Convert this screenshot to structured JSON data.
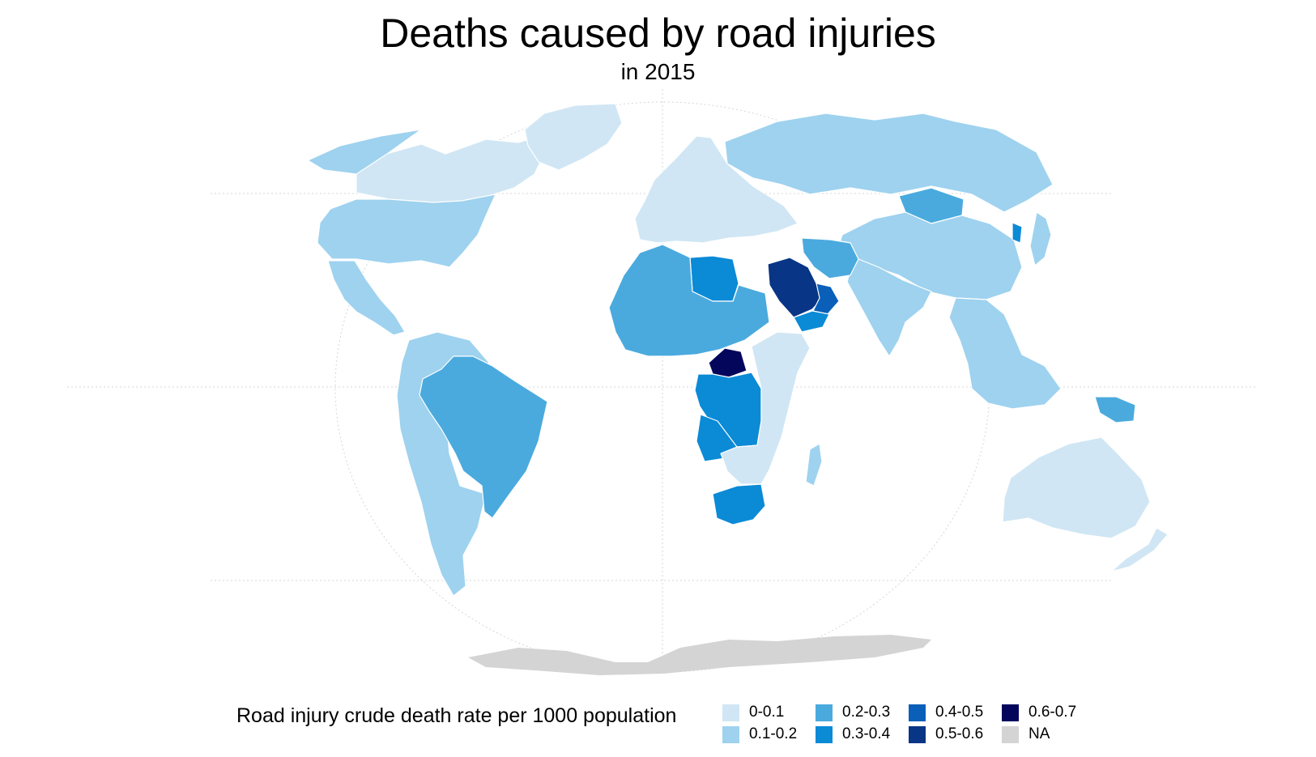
{
  "title": "Deaths caused by road injuries",
  "subtitle": "in 2015",
  "legend": {
    "title": "Road injury crude death rate per 1000 population",
    "items": [
      {
        "label": "0-0.1",
        "color": "#d0e6f4"
      },
      {
        "label": "0.1-0.2",
        "color": "#9ed2ef"
      },
      {
        "label": "0.2-0.3",
        "color": "#4aaade"
      },
      {
        "label": "0.3-0.4",
        "color": "#0b8ad6"
      },
      {
        "label": "0.4-0.5",
        "color": "#0a5fb9"
      },
      {
        "label": "0.5-0.6",
        "color": "#083585"
      },
      {
        "label": "0.6-0.7",
        "color": "#04065c"
      },
      {
        "label": "NA",
        "color": "#d4d4d4"
      }
    ]
  },
  "regions": [
    {
      "name": "Canada",
      "bin": "0-0.1"
    },
    {
      "name": "Greenland",
      "bin": "0-0.1"
    },
    {
      "name": "Alaska",
      "bin": "0.1-0.2"
    },
    {
      "name": "United States",
      "bin": "0.1-0.2"
    },
    {
      "name": "Mexico and Central America",
      "bin": "0.1-0.2"
    },
    {
      "name": "South America",
      "bin": "0.1-0.2"
    },
    {
      "name": "Brazil",
      "bin": "0.2-0.3"
    },
    {
      "name": "Europe",
      "bin": "0-0.1"
    },
    {
      "name": "Russia",
      "bin": "0.1-0.2"
    },
    {
      "name": "Mongolia",
      "bin": "0.2-0.3"
    },
    {
      "name": "China",
      "bin": "0.1-0.2"
    },
    {
      "name": "India",
      "bin": "0.1-0.2"
    },
    {
      "name": "Iran",
      "bin": "0.2-0.3"
    },
    {
      "name": "Saudi Arabia",
      "bin": "0.5-0.6"
    },
    {
      "name": "Oman",
      "bin": "0.4-0.5"
    },
    {
      "name": "Yemen",
      "bin": "0.3-0.4"
    },
    {
      "name": "Libya",
      "bin": "0.3-0.4"
    },
    {
      "name": "North and West Africa",
      "bin": "0.2-0.3"
    },
    {
      "name": "Central African Republic",
      "bin": "0.6-0.7"
    },
    {
      "name": "DR Congo",
      "bin": "0.3-0.4"
    },
    {
      "name": "Angola",
      "bin": "0.3-0.4"
    },
    {
      "name": "South Africa",
      "bin": "0.3-0.4"
    },
    {
      "name": "East Africa",
      "bin": "0-0.1"
    },
    {
      "name": "Madagascar",
      "bin": "0.1-0.2"
    },
    {
      "name": "Southeast Asia",
      "bin": "0.1-0.2"
    },
    {
      "name": "Papua New Guinea",
      "bin": "0.2-0.3"
    },
    {
      "name": "Australia",
      "bin": "0-0.1"
    },
    {
      "name": "New Zealand",
      "bin": "0-0.1"
    },
    {
      "name": "Korea",
      "bin": "0.3-0.4"
    },
    {
      "name": "Japan",
      "bin": "0.1-0.2"
    },
    {
      "name": "Antarctica",
      "bin": "NA"
    }
  ]
}
